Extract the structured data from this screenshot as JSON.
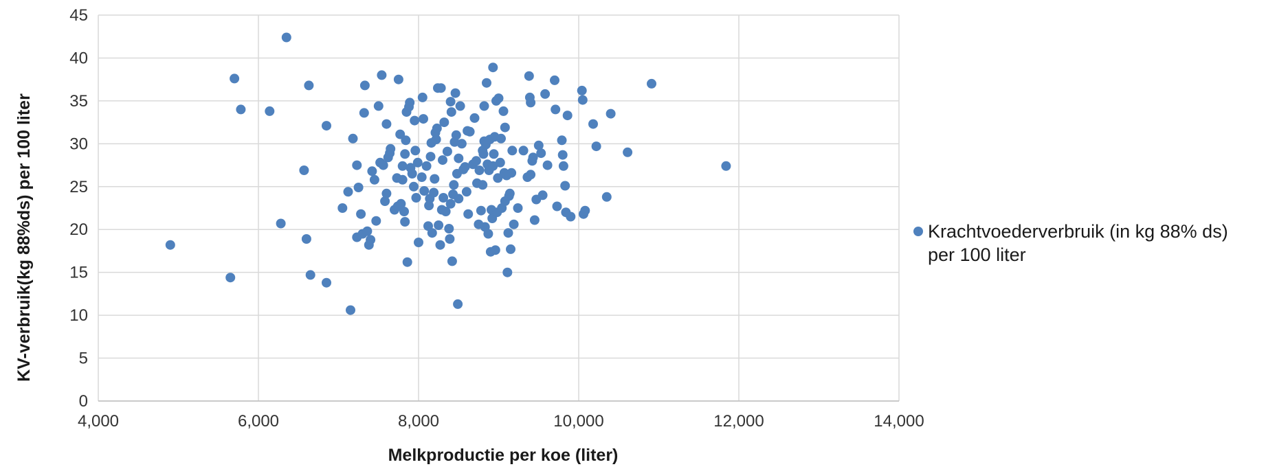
{
  "chart_data": {
    "type": "scatter",
    "title": "",
    "xlabel": "Melkproductie per koe (liter)",
    "ylabel": "KV-verbruik(kg 88%ds) per 100 liter",
    "xlim": [
      4000,
      14000
    ],
    "ylim": [
      0,
      45
    ],
    "x_ticks": [
      "4,000",
      "6,000",
      "8,000",
      "10,000",
      "12,000",
      "14,000"
    ],
    "y_ticks": [
      "0",
      "5",
      "10",
      "15",
      "20",
      "25",
      "30",
      "35",
      "40",
      "45"
    ],
    "grid": true,
    "legend_position": "right",
    "series": [
      {
        "name": "Krachtvoederverbruik (in kg 88% ds) per 100 liter",
        "color": "#4f81bd",
        "points": [
          [
            4900,
            18.2
          ],
          [
            5650,
            14.4
          ],
          [
            5700,
            37.6
          ],
          [
            5780,
            34.0
          ],
          [
            6140,
            33.8
          ],
          [
            6280,
            20.7
          ],
          [
            6350,
            42.4
          ],
          [
            6570,
            26.9
          ],
          [
            6600,
            18.9
          ],
          [
            6630,
            36.8
          ],
          [
            6650,
            14.7
          ],
          [
            6850,
            32.1
          ],
          [
            6850,
            13.8
          ],
          [
            7050,
            22.5
          ],
          [
            7120,
            24.4
          ],
          [
            7150,
            10.6
          ],
          [
            7180,
            30.6
          ],
          [
            7230,
            19.1
          ],
          [
            7230,
            27.5
          ],
          [
            7250,
            24.9
          ],
          [
            7280,
            21.8
          ],
          [
            7300,
            19.5
          ],
          [
            7320,
            33.6
          ],
          [
            7330,
            36.8
          ],
          [
            7360,
            19.8
          ],
          [
            7380,
            18.2
          ],
          [
            7400,
            18.8
          ],
          [
            7420,
            26.8
          ],
          [
            7450,
            25.8
          ],
          [
            7470,
            21.0
          ],
          [
            7500,
            34.4
          ],
          [
            7520,
            27.8
          ],
          [
            7540,
            38.0
          ],
          [
            7560,
            27.5
          ],
          [
            7580,
            23.3
          ],
          [
            7600,
            32.3
          ],
          [
            7600,
            24.2
          ],
          [
            7620,
            28.4
          ],
          [
            7640,
            28.9
          ],
          [
            7650,
            29.4
          ],
          [
            7700,
            22.3
          ],
          [
            7730,
            26.0
          ],
          [
            7740,
            22.7
          ],
          [
            7750,
            37.5
          ],
          [
            7770,
            31.1
          ],
          [
            7780,
            23.0
          ],
          [
            7800,
            27.4
          ],
          [
            7800,
            25.8
          ],
          [
            7820,
            22.1
          ],
          [
            7830,
            20.9
          ],
          [
            7830,
            28.8
          ],
          [
            7840,
            30.4
          ],
          [
            7850,
            33.7
          ],
          [
            7860,
            16.2
          ],
          [
            7880,
            34.3
          ],
          [
            7890,
            34.8
          ],
          [
            7900,
            27.2
          ],
          [
            7920,
            26.5
          ],
          [
            7940,
            25.0
          ],
          [
            7950,
            32.7
          ],
          [
            7960,
            29.2
          ],
          [
            7970,
            23.7
          ],
          [
            7990,
            27.8
          ],
          [
            8000,
            18.5
          ],
          [
            8040,
            26.1
          ],
          [
            8050,
            35.4
          ],
          [
            8060,
            32.9
          ],
          [
            8070,
            24.5
          ],
          [
            8100,
            27.4
          ],
          [
            8120,
            20.4
          ],
          [
            8130,
            22.8
          ],
          [
            8140,
            23.6
          ],
          [
            8150,
            28.5
          ],
          [
            8160,
            30.1
          ],
          [
            8170,
            19.6
          ],
          [
            8190,
            24.3
          ],
          [
            8200,
            25.9
          ],
          [
            8210,
            31.3
          ],
          [
            8220,
            30.5
          ],
          [
            8230,
            31.8
          ],
          [
            8240,
            36.5
          ],
          [
            8250,
            20.5
          ],
          [
            8270,
            18.2
          ],
          [
            8280,
            36.5
          ],
          [
            8290,
            22.3
          ],
          [
            8300,
            28.1
          ],
          [
            8310,
            23.7
          ],
          [
            8320,
            32.5
          ],
          [
            8340,
            22.1
          ],
          [
            8360,
            29.1
          ],
          [
            8380,
            20.1
          ],
          [
            8390,
            18.9
          ],
          [
            8400,
            34.9
          ],
          [
            8400,
            23.0
          ],
          [
            8410,
            33.7
          ],
          [
            8420,
            16.3
          ],
          [
            8430,
            24.1
          ],
          [
            8440,
            25.2
          ],
          [
            8450,
            30.2
          ],
          [
            8460,
            35.9
          ],
          [
            8470,
            31.0
          ],
          [
            8480,
            26.5
          ],
          [
            8490,
            11.3
          ],
          [
            8500,
            23.6
          ],
          [
            8500,
            28.3
          ],
          [
            8520,
            34.4
          ],
          [
            8540,
            30.0
          ],
          [
            8560,
            27.0
          ],
          [
            8580,
            27.3
          ],
          [
            8600,
            24.4
          ],
          [
            8610,
            31.5
          ],
          [
            8620,
            21.8
          ],
          [
            8640,
            31.4
          ],
          [
            8680,
            27.6
          ],
          [
            8700,
            33.0
          ],
          [
            8720,
            28.0
          ],
          [
            8730,
            25.4
          ],
          [
            8750,
            20.6
          ],
          [
            8760,
            26.9
          ],
          [
            8780,
            22.2
          ],
          [
            8800,
            25.2
          ],
          [
            8800,
            29.2
          ],
          [
            8810,
            28.8
          ],
          [
            8820,
            34.4
          ],
          [
            8820,
            30.3
          ],
          [
            8830,
            20.3
          ],
          [
            8840,
            29.9
          ],
          [
            8850,
            37.1
          ],
          [
            8860,
            27.6
          ],
          [
            8870,
            19.5
          ],
          [
            8880,
            26.9
          ],
          [
            8890,
            30.5
          ],
          [
            8900,
            17.4
          ],
          [
            8910,
            22.3
          ],
          [
            8920,
            21.3
          ],
          [
            8930,
            38.9
          ],
          [
            8930,
            27.4
          ],
          [
            8940,
            28.8
          ],
          [
            8950,
            30.8
          ],
          [
            8960,
            17.6
          ],
          [
            8970,
            35.0
          ],
          [
            8980,
            22.0
          ],
          [
            8990,
            26.0
          ],
          [
            9000,
            35.3
          ],
          [
            9020,
            27.8
          ],
          [
            9030,
            30.6
          ],
          [
            9040,
            22.5
          ],
          [
            9060,
            33.8
          ],
          [
            9070,
            26.6
          ],
          [
            9080,
            23.3
          ],
          [
            9080,
            31.9
          ],
          [
            9100,
            26.3
          ],
          [
            9110,
            15.0
          ],
          [
            9120,
            19.6
          ],
          [
            9130,
            23.9
          ],
          [
            9140,
            24.2
          ],
          [
            9150,
            17.7
          ],
          [
            9160,
            26.6
          ],
          [
            9170,
            29.2
          ],
          [
            9190,
            20.6
          ],
          [
            9240,
            22.5
          ],
          [
            9310,
            29.2
          ],
          [
            9360,
            26.1
          ],
          [
            9380,
            37.9
          ],
          [
            9390,
            35.4
          ],
          [
            9400,
            34.8
          ],
          [
            9400,
            26.4
          ],
          [
            9420,
            28.0
          ],
          [
            9430,
            28.4
          ],
          [
            9450,
            21.1
          ],
          [
            9470,
            23.5
          ],
          [
            9500,
            29.8
          ],
          [
            9530,
            28.9
          ],
          [
            9550,
            24.0
          ],
          [
            9580,
            35.8
          ],
          [
            9610,
            27.5
          ],
          [
            9700,
            37.4
          ],
          [
            9710,
            34.0
          ],
          [
            9730,
            22.7
          ],
          [
            9790,
            30.4
          ],
          [
            9800,
            28.7
          ],
          [
            9810,
            27.4
          ],
          [
            9830,
            25.1
          ],
          [
            9840,
            22.0
          ],
          [
            9860,
            33.3
          ],
          [
            9900,
            21.5
          ],
          [
            10040,
            36.2
          ],
          [
            10050,
            35.1
          ],
          [
            10060,
            21.8
          ],
          [
            10080,
            22.2
          ],
          [
            10180,
            32.3
          ],
          [
            10220,
            29.7
          ],
          [
            10350,
            23.8
          ],
          [
            10400,
            33.5
          ],
          [
            10610,
            29.0
          ],
          [
            10910,
            37.0
          ],
          [
            11840,
            27.4
          ]
        ]
      }
    ]
  }
}
